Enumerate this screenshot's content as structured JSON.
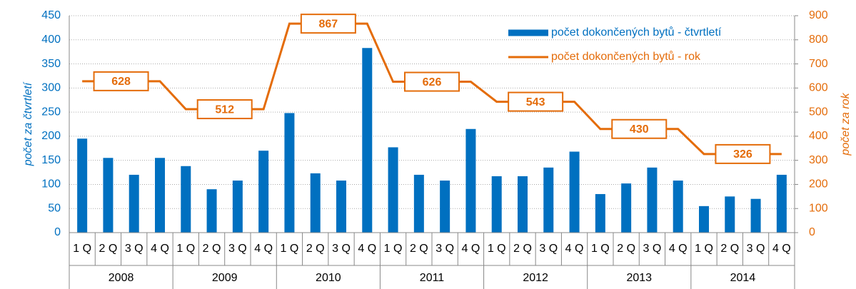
{
  "chart_data": {
    "type": "bar-line",
    "categories": [
      "1 Q",
      "2 Q",
      "3 Q",
      "4 Q",
      "1 Q",
      "2 Q",
      "3 Q",
      "4 Q",
      "1 Q",
      "2 Q",
      "3 Q",
      "4 Q",
      "1 Q",
      "2 Q",
      "3 Q",
      "4 Q",
      "1 Q",
      "2 Q",
      "3 Q",
      "4 Q",
      "1 Q",
      "2 Q",
      "3 Q",
      "4 Q",
      "1 Q",
      "2 Q",
      "3 Q",
      "4 Q"
    ],
    "groups": [
      "2008",
      "2009",
      "2010",
      "2011",
      "2012",
      "2013",
      "2014"
    ],
    "series": [
      {
        "name": "počet dokončených bytů - čtvrtletí",
        "color": "#0070c0",
        "type": "bar",
        "values": [
          195,
          155,
          120,
          155,
          138,
          90,
          108,
          170,
          248,
          123,
          108,
          383,
          177,
          120,
          108,
          215,
          117,
          117,
          135,
          168,
          80,
          102,
          135,
          108,
          55,
          75,
          70,
          120
        ]
      },
      {
        "name": "počet dokončených bytů - rok",
        "color": "#e46c0a",
        "type": "line",
        "axis": "y2",
        "values": [
          628,
          628,
          628,
          628,
          512,
          512,
          512,
          512,
          867,
          867,
          867,
          867,
          626,
          626,
          626,
          626,
          543,
          543,
          543,
          543,
          430,
          430,
          430,
          430,
          326,
          326,
          326,
          326
        ]
      }
    ],
    "ylabel": "počet za čtvrtletí",
    "y2label": "počet za rok",
    "ylim": [
      0,
      450
    ],
    "yticks": [
      0,
      50,
      100,
      150,
      200,
      250,
      300,
      350,
      400,
      450
    ],
    "y2lim": [
      0,
      900
    ],
    "y2ticks": [
      0,
      100,
      200,
      300,
      400,
      500,
      600,
      700,
      800,
      900
    ],
    "grid": true,
    "legend": "upper right"
  }
}
